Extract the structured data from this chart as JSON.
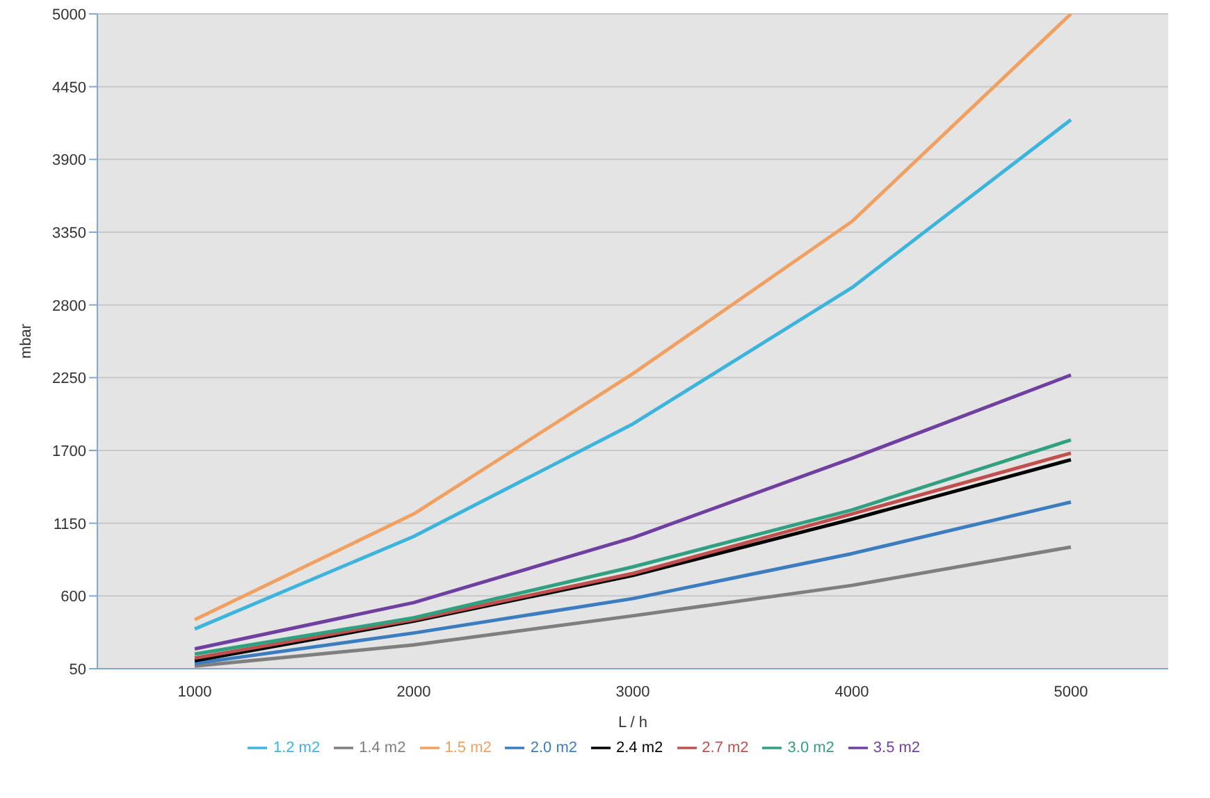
{
  "chart_data": {
    "type": "line",
    "xlabel": "L / h",
    "ylabel": "mbar",
    "categories": [
      "1000",
      "2000",
      "3000",
      "4000",
      "5000"
    ],
    "ylim": [
      50,
      5000
    ],
    "yticks": [
      50,
      600,
      1150,
      1700,
      2250,
      2800,
      3350,
      3900,
      4450,
      5000
    ],
    "grid": "y",
    "legend": "bottom",
    "marker": "none",
    "line_style": "solid",
    "series": [
      {
        "name": "1.2 m2",
        "color": "#3cb4dc",
        "values": [
          350,
          1050,
          1900,
          2930,
          4200
        ]
      },
      {
        "name": "1.4 m2",
        "color": "#7f7f7f",
        "values": [
          70,
          230,
          450,
          680,
          970
        ]
      },
      {
        "name": "1.5 m2",
        "color": "#f0a060",
        "values": [
          420,
          1220,
          2280,
          3430,
          5000
        ]
      },
      {
        "name": "2.0 m2",
        "color": "#3c7dc0",
        "values": [
          90,
          320,
          580,
          920,
          1310
        ]
      },
      {
        "name": "2.4 m2",
        "color": "#000000",
        "values": [
          110,
          410,
          755,
          1180,
          1630
        ]
      },
      {
        "name": "2.7 m2",
        "color": "#c0504d",
        "values": [
          130,
          420,
          770,
          1220,
          1680
        ]
      },
      {
        "name": "3.0 m2",
        "color": "#30a080",
        "values": [
          160,
          435,
          820,
          1250,
          1780
        ]
      },
      {
        "name": "3.5 m2",
        "color": "#7040a0",
        "values": [
          200,
          550,
          1040,
          1640,
          2270
        ]
      }
    ]
  }
}
